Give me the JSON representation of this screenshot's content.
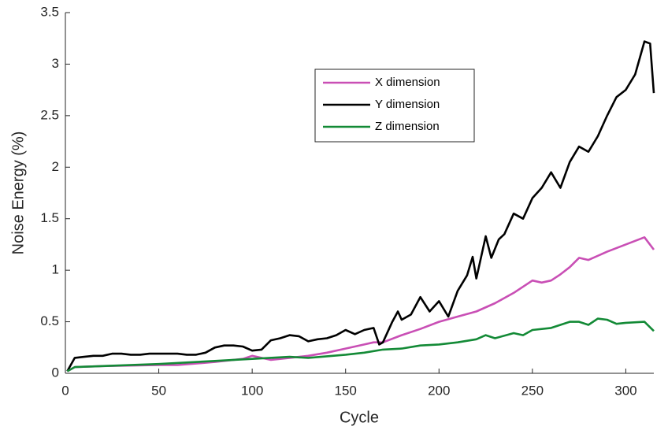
{
  "chart_data": {
    "type": "line",
    "x_label": "Cycle",
    "y_label": "Noise Energy (%)",
    "xlim": [
      0,
      315
    ],
    "ylim": [
      0,
      3.5
    ],
    "xticks": [
      0,
      50,
      100,
      150,
      200,
      250,
      300
    ],
    "yticks": [
      0,
      0.5,
      1,
      1.5,
      2,
      2.5,
      3,
      3.5
    ],
    "legend": "upper-center",
    "series": [
      {
        "name": "X dimension",
        "color": "#c94fb5",
        "x": [
          1,
          5,
          20,
          50,
          60,
          80,
          95,
          100,
          105,
          110,
          120,
          130,
          140,
          150,
          160,
          165,
          170,
          180,
          190,
          200,
          210,
          220,
          230,
          240,
          250,
          255,
          260,
          265,
          270,
          275,
          280,
          290,
          300,
          310,
          315
        ],
        "values": [
          0.02,
          0.06,
          0.07,
          0.08,
          0.08,
          0.11,
          0.14,
          0.17,
          0.15,
          0.13,
          0.15,
          0.17,
          0.2,
          0.24,
          0.28,
          0.3,
          0.3,
          0.37,
          0.43,
          0.5,
          0.55,
          0.6,
          0.68,
          0.78,
          0.9,
          0.88,
          0.9,
          0.96,
          1.03,
          1.12,
          1.1,
          1.18,
          1.25,
          1.32,
          1.2
        ]
      },
      {
        "name": "Y dimension",
        "color": "#000000",
        "x": [
          1,
          5,
          10,
          15,
          20,
          25,
          30,
          35,
          40,
          45,
          50,
          55,
          60,
          65,
          70,
          75,
          80,
          85,
          90,
          95,
          100,
          105,
          110,
          115,
          120,
          125,
          130,
          135,
          140,
          145,
          150,
          155,
          160,
          165,
          168,
          170,
          175,
          178,
          180,
          185,
          190,
          195,
          200,
          205,
          210,
          215,
          218,
          220,
          225,
          228,
          232,
          235,
          240,
          245,
          250,
          255,
          260,
          265,
          270,
          275,
          280,
          285,
          290,
          295,
          300,
          305,
          310,
          313,
          315
        ],
        "values": [
          0.02,
          0.15,
          0.16,
          0.17,
          0.17,
          0.19,
          0.19,
          0.18,
          0.18,
          0.19,
          0.19,
          0.19,
          0.19,
          0.18,
          0.18,
          0.2,
          0.25,
          0.27,
          0.27,
          0.26,
          0.22,
          0.23,
          0.32,
          0.34,
          0.37,
          0.36,
          0.31,
          0.33,
          0.34,
          0.37,
          0.42,
          0.38,
          0.42,
          0.44,
          0.28,
          0.3,
          0.5,
          0.6,
          0.52,
          0.57,
          0.74,
          0.6,
          0.7,
          0.55,
          0.8,
          0.95,
          1.13,
          0.92,
          1.33,
          1.12,
          1.3,
          1.35,
          1.55,
          1.5,
          1.7,
          1.8,
          1.95,
          1.8,
          2.05,
          2.2,
          2.15,
          2.3,
          2.5,
          2.68,
          2.75,
          2.9,
          3.22,
          3.2,
          2.72
        ]
      },
      {
        "name": "Z dimension",
        "color": "#138a36",
        "x": [
          1,
          5,
          20,
          50,
          80,
          100,
          120,
          130,
          150,
          160,
          170,
          180,
          190,
          200,
          210,
          220,
          225,
          230,
          240,
          245,
          250,
          260,
          270,
          275,
          280,
          285,
          290,
          295,
          300,
          310,
          315
        ],
        "values": [
          0.02,
          0.06,
          0.07,
          0.09,
          0.12,
          0.14,
          0.16,
          0.15,
          0.18,
          0.2,
          0.23,
          0.24,
          0.27,
          0.28,
          0.3,
          0.33,
          0.37,
          0.34,
          0.39,
          0.37,
          0.42,
          0.44,
          0.5,
          0.5,
          0.47,
          0.53,
          0.52,
          0.48,
          0.49,
          0.5,
          0.41
        ]
      }
    ]
  }
}
